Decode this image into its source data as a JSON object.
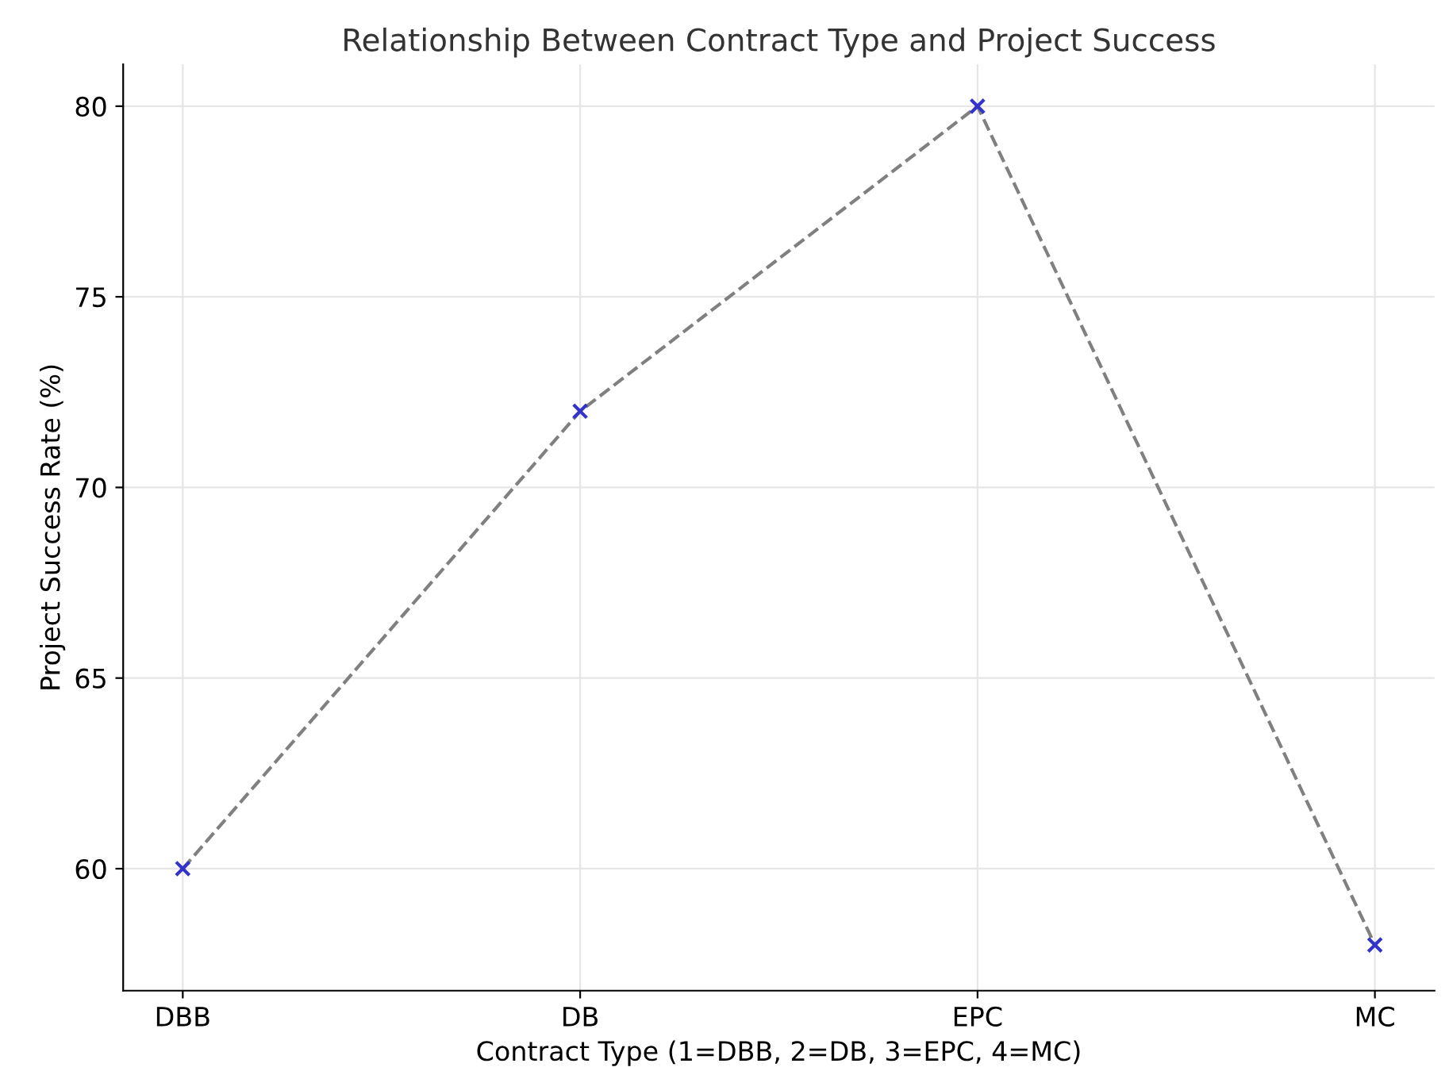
{
  "chart_data": {
    "type": "line",
    "title": "Relationship Between Contract Type and Project Success",
    "xlabel": "Contract Type (1=DBB, 2=DB, 3=EPC, 4=MC)",
    "ylabel": "Project Success Rate (%)",
    "categories": [
      "DBB",
      "DB",
      "EPC",
      "MC"
    ],
    "series": [
      {
        "color": "#808080",
        "values": [
          60,
          72,
          80,
          58
        ],
        "line_style": "dashed",
        "marker": "none"
      },
      {
        "type": "scatter",
        "color": "#3333cc",
        "values": [
          60,
          72,
          80,
          58
        ],
        "marker": "cross"
      }
    ],
    "ylim": [
      56.8,
      81.1
    ],
    "yticks": [
      60,
      65,
      70,
      75,
      80
    ],
    "grid": true
  }
}
